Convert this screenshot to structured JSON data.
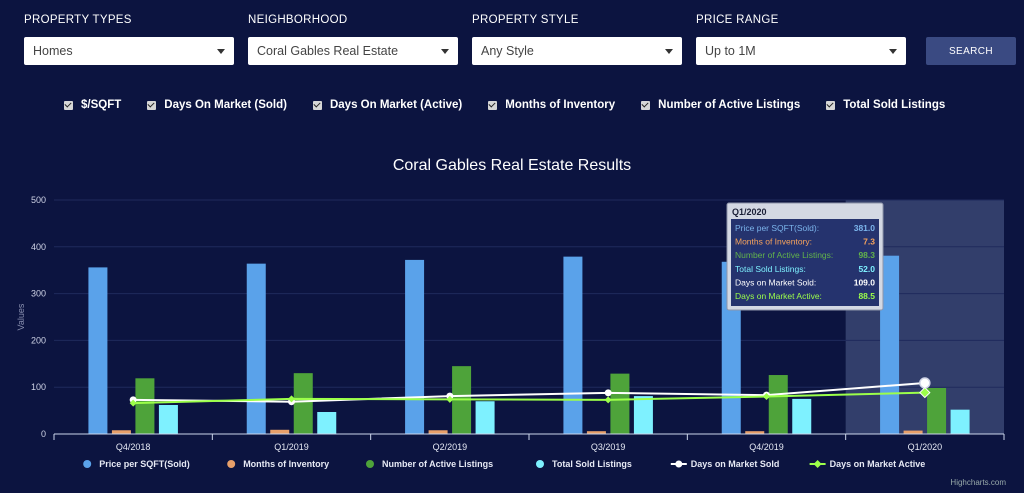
{
  "filters": [
    {
      "label": "PROPERTY TYPES",
      "value": "Homes"
    },
    {
      "label": "NEIGHBORHOOD",
      "value": "Coral Gables Real Estate"
    },
    {
      "label": "PROPERTY STYLE",
      "value": "Any Style"
    },
    {
      "label": "PRICE RANGE",
      "value": "Up to 1M"
    }
  ],
  "search_label": "SEARCH",
  "checkboxes": [
    "$/SQFT",
    "Days On Market (Sold)",
    "Days On Market (Active)",
    "Months of Inventory",
    "Number of Active Listings",
    "Total Sold Listings"
  ],
  "credit": "Highcharts.com",
  "tooltip": {
    "title": "Q1/2020",
    "rows": [
      {
        "label": "Price per SQFT(Sold):",
        "value": "381.0",
        "color": "#7cb5ec"
      },
      {
        "label": "Months of Inventory:",
        "value": "7.3",
        "color": "#f7a35c"
      },
      {
        "label": "Number of Active Listings:",
        "value": "98.3",
        "color": "#62b34a"
      },
      {
        "label": "Total Sold Listings:",
        "value": "52.0",
        "color": "#7ef1ff"
      },
      {
        "label": "Days on Market Sold:",
        "value": "109.0",
        "color": "#ffffff"
      },
      {
        "label": "Days on Market Active:",
        "value": "88.5",
        "color": "#9cff4a"
      }
    ]
  },
  "chart_data": {
    "type": "bar",
    "title": "Coral Gables Real Estate Results",
    "ylabel": "Values",
    "ylim": [
      0,
      500
    ],
    "yticks": [
      0,
      100,
      200,
      300,
      400,
      500
    ],
    "categories": [
      "Q4/2018",
      "Q1/2019",
      "Q2/2019",
      "Q3/2019",
      "Q4/2019",
      "Q1/2020"
    ],
    "highlighted_category": "Q1/2020",
    "legend_position": "bottom",
    "series": [
      {
        "name": "Price per SQFT(Sold)",
        "type": "bar",
        "color": "#5aa2ea",
        "values": [
          356,
          364,
          372,
          379,
          368,
          381
        ]
      },
      {
        "name": "Months of Inventory",
        "type": "bar",
        "color": "#e8a06a",
        "values": [
          8,
          9,
          8,
          6,
          6,
          7.3
        ]
      },
      {
        "name": "Number of Active Listings",
        "type": "bar",
        "color": "#4ea33a",
        "values": [
          119,
          130,
          145,
          129,
          126,
          98.3
        ]
      },
      {
        "name": "Total Sold Listings",
        "type": "bar",
        "color": "#7ef1ff",
        "values": [
          62,
          47,
          70,
          81,
          75,
          52
        ]
      },
      {
        "name": "Days on Market Sold",
        "type": "line",
        "color": "#ffffff",
        "values": [
          73,
          69,
          81,
          88,
          83,
          109
        ]
      },
      {
        "name": "Days on Market Active",
        "type": "line",
        "color": "#9cff4a",
        "values": [
          66,
          75,
          74,
          73,
          80,
          88.5
        ]
      }
    ]
  }
}
